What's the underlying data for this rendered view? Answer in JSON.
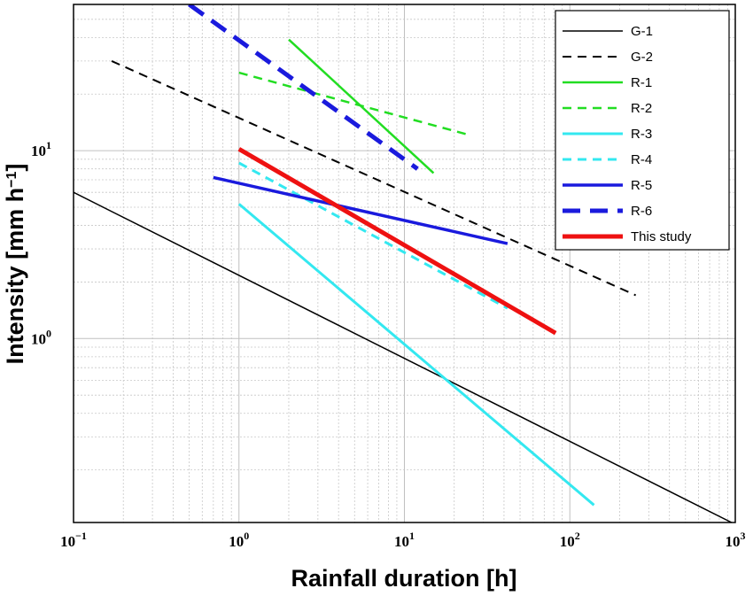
{
  "chart_data": {
    "type": "line",
    "xlabel": "Rainfall duration [h]",
    "ylabel_main": "Intensity [mm h",
    "ylabel_exp": "−1",
    "ylabel_close": "]",
    "x_scale": "log",
    "y_scale": "log",
    "xlim": [
      0.1,
      1000
    ],
    "ylim": [
      0.105,
      60
    ],
    "grid": true,
    "legend_position": "top-right",
    "x_ticks": [
      {
        "value": 0.1,
        "base": "10",
        "exp": "−1"
      },
      {
        "value": 1,
        "base": "10",
        "exp": "0"
      },
      {
        "value": 10,
        "base": "10",
        "exp": "1"
      },
      {
        "value": 100,
        "base": "10",
        "exp": "2"
      },
      {
        "value": 1000,
        "base": "10",
        "exp": "3"
      }
    ],
    "y_ticks": [
      {
        "value": 1,
        "base": "10",
        "exp": "0"
      },
      {
        "value": 10,
        "base": "10",
        "exp": "1"
      }
    ],
    "series": [
      {
        "name": "G-1",
        "color": "#000000",
        "dash": "solid",
        "width": 1.5,
        "x": [
          0.1,
          950
        ],
        "y": [
          6.0,
          0.105
        ]
      },
      {
        "name": "G-2",
        "color": "#000000",
        "dash": "dashed",
        "width": 2,
        "x": [
          0.17,
          250
        ],
        "y": [
          30,
          1.7
        ]
      },
      {
        "name": "R-1",
        "color": "#22dd22",
        "dash": "solid",
        "width": 2.5,
        "x": [
          2,
          15
        ],
        "y": [
          39,
          7.6
        ]
      },
      {
        "name": "R-2",
        "color": "#22dd22",
        "dash": "dashed",
        "width": 2.5,
        "x": [
          1,
          24
        ],
        "y": [
          26,
          12.2
        ]
      },
      {
        "name": "R-3",
        "color": "#33e8f0",
        "dash": "solid",
        "width": 3,
        "x": [
          1,
          140
        ],
        "y": [
          5.2,
          0.13
        ]
      },
      {
        "name": "R-4",
        "color": "#33e8f0",
        "dash": "dashed",
        "width": 3,
        "x": [
          1,
          42
        ],
        "y": [
          8.6,
          1.45
        ]
      },
      {
        "name": "R-5",
        "color": "#1a1add",
        "dash": "solid",
        "width": 3.5,
        "x": [
          0.7,
          42
        ],
        "y": [
          7.2,
          3.2
        ]
      },
      {
        "name": "R-6",
        "color": "#1a1add",
        "dash": "bigdash",
        "width": 5,
        "x": [
          0.5,
          12
        ],
        "y": [
          60,
          8.0
        ]
      },
      {
        "name": "This study",
        "color": "#ee1111",
        "dash": "solid",
        "width": 5,
        "x": [
          1,
          82
        ],
        "y": [
          10.2,
          1.07
        ]
      }
    ]
  }
}
